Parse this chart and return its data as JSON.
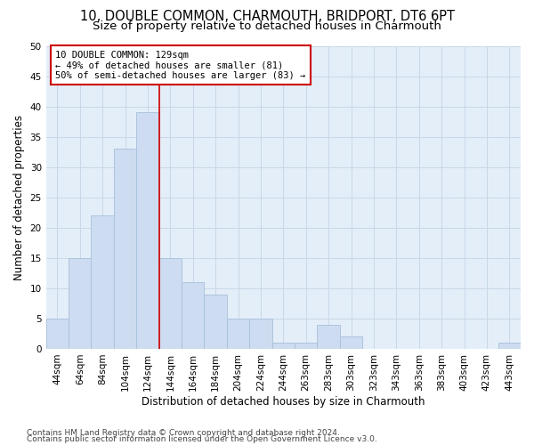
{
  "title1": "10, DOUBLE COMMON, CHARMOUTH, BRIDPORT, DT6 6PT",
  "title2": "Size of property relative to detached houses in Charmouth",
  "xlabel": "Distribution of detached houses by size in Charmouth",
  "ylabel": "Number of detached properties",
  "footer1": "Contains HM Land Registry data © Crown copyright and database right 2024.",
  "footer2": "Contains public sector information licensed under the Open Government Licence v3.0.",
  "bin_labels": [
    "44sqm",
    "64sqm",
    "84sqm",
    "104sqm",
    "124sqm",
    "144sqm",
    "164sqm",
    "184sqm",
    "204sqm",
    "224sqm",
    "244sqm",
    "263sqm",
    "283sqm",
    "303sqm",
    "323sqm",
    "343sqm",
    "363sqm",
    "383sqm",
    "403sqm",
    "423sqm",
    "443sqm"
  ],
  "values": [
    5,
    15,
    22,
    33,
    39,
    15,
    11,
    9,
    5,
    5,
    1,
    1,
    4,
    2,
    0,
    0,
    0,
    0,
    0,
    0,
    1
  ],
  "bar_color": "#cddcf0",
  "bar_edge_color": "#a8c0dc",
  "grid_color": "#c8d8e8",
  "background_color": "#e4eef8",
  "vline_color": "#cc0000",
  "annotation_text": "10 DOUBLE COMMON: 129sqm\n← 49% of detached houses are smaller (81)\n50% of semi-detached houses are larger (83) →",
  "annotation_box_color": "#cc0000",
  "ylim": [
    0,
    50
  ],
  "yticks": [
    0,
    5,
    10,
    15,
    20,
    25,
    30,
    35,
    40,
    45,
    50
  ],
  "title1_fontsize": 10.5,
  "title2_fontsize": 9.5,
  "xlabel_fontsize": 8.5,
  "ylabel_fontsize": 8.5,
  "tick_fontsize": 7.5,
  "annotation_fontsize": 7.5,
  "footer_fontsize": 6.5
}
